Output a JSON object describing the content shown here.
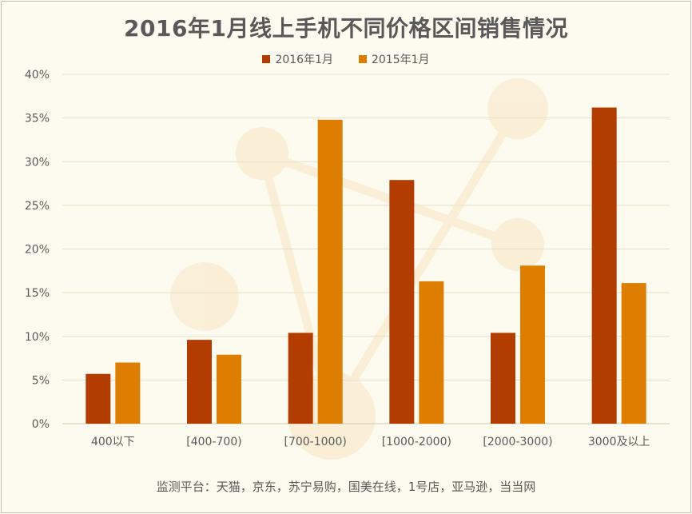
{
  "chart_data": {
    "type": "bar",
    "title": "2016年1月线上手机不同价格区间销售情况",
    "categories": [
      "400以下",
      "[400-700)",
      "[700-1000)",
      "[1000-2000)",
      "[2000-3000)",
      "3000及以上"
    ],
    "series": [
      {
        "name": "2016年1月",
        "color": "#b33d00",
        "values": [
          5.7,
          9.6,
          10.4,
          27.9,
          10.4,
          36.2
        ]
      },
      {
        "name": "2015年1月",
        "color": "#dd7e00",
        "values": [
          7.0,
          7.9,
          34.8,
          16.3,
          18.1,
          16.1
        ]
      }
    ],
    "ylim": [
      0,
      40
    ],
    "yticks": [
      "0%",
      "5%",
      "10%",
      "15%",
      "20%",
      "25%",
      "30%",
      "35%",
      "40%"
    ],
    "grid": true,
    "legend_position": "top",
    "footnote": "监测平台：天猫，京东，苏宁易购，国美在线，1号店，亚马逊，当当网"
  }
}
